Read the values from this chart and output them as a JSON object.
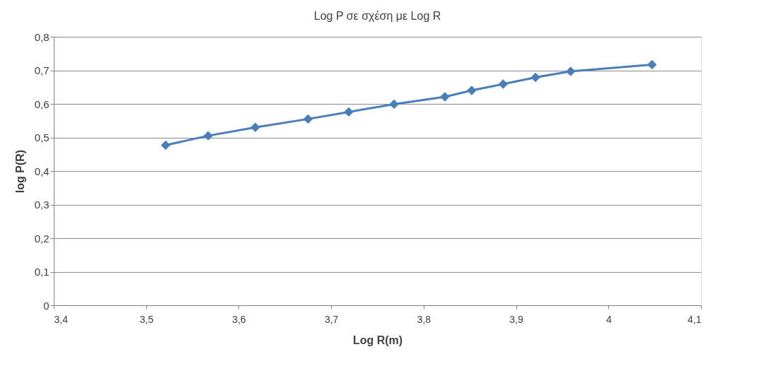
{
  "chart_data": {
    "type": "line",
    "title": "Log P σε σχέση με Log R",
    "xlabel": "Log R(m)",
    "ylabel": "log P(R)",
    "x": [
      3.521,
      3.567,
      3.618,
      3.675,
      3.719,
      3.768,
      3.823,
      3.852,
      3.886,
      3.921,
      3.959,
      4.047
    ],
    "series": [
      {
        "color": "#4a7ebb",
        "values": [
          0.477,
          0.505,
          0.53,
          0.555,
          0.576,
          0.599,
          0.621,
          0.64,
          0.659,
          0.679,
          0.697,
          0.717
        ]
      }
    ],
    "xlim": [
      3.4,
      4.1
    ],
    "xticks": [
      {
        "value": 3.4,
        "label": "3,4"
      },
      {
        "value": 3.5,
        "label": "3,5"
      },
      {
        "value": 3.6,
        "label": "3,6"
      },
      {
        "value": 3.7,
        "label": "3,7"
      },
      {
        "value": 3.8,
        "label": "3,8"
      },
      {
        "value": 3.9,
        "label": "3,9"
      },
      4,
      {
        "value": 4.1,
        "label": "4,1"
      }
    ],
    "ylim": [
      0,
      0.8
    ],
    "yticks": [
      0,
      {
        "value": 0.1,
        "label": "0,1"
      },
      {
        "value": 0.2,
        "label": "0,2"
      },
      {
        "value": 0.3,
        "label": "0,3"
      },
      {
        "value": 0.4,
        "label": "0,4"
      },
      {
        "value": 0.5,
        "label": "0,5"
      },
      {
        "value": 0.6,
        "label": "0,6"
      },
      {
        "value": 0.7,
        "label": "0,7"
      },
      {
        "value": 0.8,
        "label": "0,8"
      }
    ],
    "grid": "y",
    "marker": "diamond",
    "line_style": "solid"
  }
}
